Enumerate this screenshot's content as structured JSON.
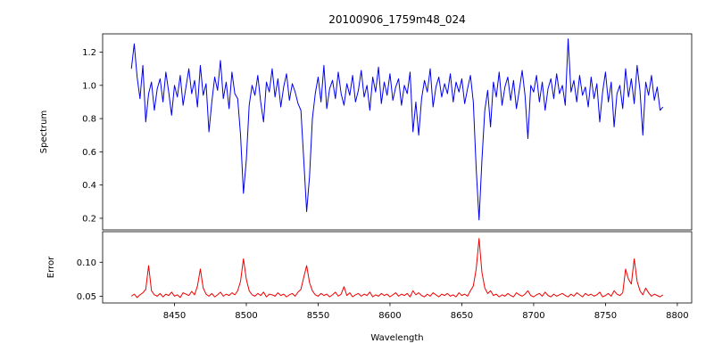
{
  "title": "20100906_1759m48_024",
  "chart_data": {
    "type": "line",
    "title": "20100906_1759m48_024",
    "xlabel": "Wavelength",
    "xlim": [
      8400,
      8810
    ],
    "xticks": [
      8450,
      8500,
      8550,
      8600,
      8650,
      8700,
      8750,
      8800
    ],
    "xtick_labels": [
      "8450",
      "8500",
      "8550",
      "8600",
      "8650",
      "8700",
      "8750",
      "8800"
    ],
    "x": [
      8420,
      8422,
      8424,
      8426,
      8428,
      8430,
      8432,
      8434,
      8436,
      8438,
      8440,
      8442,
      8444,
      8446,
      8448,
      8450,
      8452,
      8454,
      8456,
      8458,
      8460,
      8462,
      8464,
      8466,
      8468,
      8470,
      8472,
      8474,
      8476,
      8478,
      8480,
      8482,
      8484,
      8486,
      8488,
      8490,
      8492,
      8494,
      8496,
      8498,
      8500,
      8502,
      8504,
      8506,
      8508,
      8510,
      8512,
      8514,
      8516,
      8518,
      8520,
      8522,
      8524,
      8526,
      8528,
      8530,
      8532,
      8534,
      8536,
      8538,
      8540,
      8542,
      8544,
      8546,
      8548,
      8550,
      8552,
      8554,
      8556,
      8558,
      8560,
      8562,
      8564,
      8566,
      8568,
      8570,
      8572,
      8574,
      8576,
      8578,
      8580,
      8582,
      8584,
      8586,
      8588,
      8590,
      8592,
      8594,
      8596,
      8598,
      8600,
      8602,
      8604,
      8606,
      8608,
      8610,
      8612,
      8614,
      8616,
      8618,
      8620,
      8622,
      8624,
      8626,
      8628,
      8630,
      8632,
      8634,
      8636,
      8638,
      8640,
      8642,
      8644,
      8646,
      8648,
      8650,
      8652,
      8654,
      8656,
      8658,
      8660,
      8662,
      8664,
      8666,
      8668,
      8670,
      8672,
      8674,
      8676,
      8678,
      8680,
      8682,
      8684,
      8686,
      8688,
      8690,
      8692,
      8694,
      8696,
      8698,
      8700,
      8702,
      8704,
      8706,
      8708,
      8710,
      8712,
      8714,
      8716,
      8718,
      8720,
      8722,
      8724,
      8726,
      8728,
      8730,
      8732,
      8734,
      8736,
      8738,
      8740,
      8742,
      8744,
      8746,
      8748,
      8750,
      8752,
      8754,
      8756,
      8758,
      8760,
      8762,
      8764,
      8766,
      8768,
      8770,
      8772,
      8774,
      8776,
      8778,
      8780,
      8782,
      8784,
      8786,
      8788,
      8790
    ],
    "panels": [
      {
        "name": "spectrum",
        "ylabel": "Spectrum",
        "color": "#0000ee",
        "ylim": [
          0.13,
          1.31
        ],
        "ytick_values": [
          0.2,
          0.4,
          0.6,
          0.8,
          1.0,
          1.2
        ],
        "ytick_labels": [
          "0.2",
          "0.4",
          "0.6",
          "0.8",
          "1.0",
          "1.2"
        ],
        "values": [
          1.1,
          1.25,
          1.05,
          0.92,
          1.12,
          0.78,
          0.95,
          1.02,
          0.85,
          0.98,
          1.04,
          0.9,
          1.08,
          0.96,
          0.82,
          1.0,
          0.93,
          1.06,
          0.88,
          0.99,
          1.1,
          0.95,
          1.03,
          0.87,
          1.12,
          0.94,
          1.01,
          0.72,
          0.9,
          1.05,
          0.97,
          1.15,
          0.92,
          1.02,
          0.86,
          1.08,
          0.95,
          0.92,
          0.7,
          0.35,
          0.55,
          0.88,
          1.0,
          0.94,
          1.06,
          0.9,
          0.78,
          1.02,
          0.96,
          1.1,
          0.93,
          1.04,
          0.87,
          0.99,
          1.07,
          0.91,
          1.01,
          0.96,
          0.89,
          0.85,
          0.55,
          0.24,
          0.45,
          0.8,
          0.95,
          1.05,
          0.9,
          1.12,
          0.86,
          0.98,
          1.03,
          0.92,
          1.08,
          0.95,
          0.88,
          1.01,
          0.94,
          1.06,
          0.9,
          0.97,
          1.09,
          0.93,
          1.0,
          0.85,
          1.05,
          0.96,
          1.11,
          0.89,
          1.02,
          0.94,
          1.07,
          0.91,
          0.99,
          1.04,
          0.88,
          1.0,
          0.95,
          1.08,
          0.72,
          0.9,
          0.7,
          0.92,
          1.03,
          0.96,
          1.1,
          0.87,
          0.99,
          1.05,
          0.93,
          1.01,
          0.95,
          1.07,
          0.9,
          1.02,
          0.96,
          1.04,
          0.89,
          0.98,
          1.06,
          0.9,
          0.5,
          0.19,
          0.55,
          0.85,
          0.97,
          0.75,
          1.02,
          0.93,
          1.08,
          0.88,
          0.99,
          1.05,
          0.91,
          1.03,
          0.86,
          0.97,
          1.09,
          0.94,
          0.68,
          1.0,
          0.96,
          1.06,
          0.9,
          1.02,
          0.85,
          0.98,
          1.04,
          0.92,
          1.07,
          0.95,
          1.0,
          0.88,
          1.28,
          0.96,
          1.03,
          0.9,
          1.06,
          0.94,
          0.99,
          0.87,
          1.05,
          0.92,
          1.01,
          0.78,
          0.96,
          1.08,
          0.9,
          1.02,
          0.75,
          0.95,
          1.0,
          0.86,
          1.1,
          0.93,
          1.04,
          0.89,
          1.12,
          0.97,
          0.7,
          1.02,
          0.94,
          1.06,
          0.91,
          0.99,
          0.85,
          0.87
        ]
      },
      {
        "name": "error",
        "ylabel": "Error",
        "color": "#ee0000",
        "ylim": [
          0.04,
          0.145
        ],
        "ytick_values": [
          0.05,
          0.1
        ],
        "ytick_labels": [
          "0.05",
          "0.10"
        ],
        "values": [
          0.05,
          0.053,
          0.048,
          0.052,
          0.055,
          0.06,
          0.095,
          0.058,
          0.052,
          0.05,
          0.054,
          0.049,
          0.053,
          0.051,
          0.056,
          0.05,
          0.052,
          0.048,
          0.055,
          0.053,
          0.051,
          0.057,
          0.052,
          0.065,
          0.09,
          0.062,
          0.053,
          0.05,
          0.054,
          0.049,
          0.052,
          0.056,
          0.05,
          0.053,
          0.051,
          0.055,
          0.052,
          0.058,
          0.072,
          0.105,
          0.075,
          0.058,
          0.052,
          0.05,
          0.054,
          0.051,
          0.056,
          0.049,
          0.053,
          0.052,
          0.05,
          0.055,
          0.051,
          0.053,
          0.049,
          0.052,
          0.054,
          0.05,
          0.056,
          0.06,
          0.078,
          0.095,
          0.07,
          0.058,
          0.052,
          0.05,
          0.054,
          0.051,
          0.053,
          0.049,
          0.052,
          0.056,
          0.05,
          0.053,
          0.064,
          0.051,
          0.055,
          0.049,
          0.052,
          0.054,
          0.05,
          0.053,
          0.051,
          0.056,
          0.049,
          0.052,
          0.05,
          0.054,
          0.051,
          0.053,
          0.049,
          0.052,
          0.055,
          0.05,
          0.053,
          0.051,
          0.054,
          0.049,
          0.058,
          0.052,
          0.055,
          0.051,
          0.049,
          0.053,
          0.05,
          0.055,
          0.052,
          0.049,
          0.053,
          0.051,
          0.054,
          0.05,
          0.052,
          0.049,
          0.055,
          0.051,
          0.053,
          0.05,
          0.058,
          0.065,
          0.09,
          0.135,
          0.085,
          0.062,
          0.054,
          0.058,
          0.051,
          0.053,
          0.049,
          0.052,
          0.05,
          0.054,
          0.051,
          0.049,
          0.055,
          0.052,
          0.05,
          0.053,
          0.058,
          0.051,
          0.049,
          0.052,
          0.054,
          0.05,
          0.056,
          0.051,
          0.049,
          0.053,
          0.05,
          0.052,
          0.054,
          0.051,
          0.049,
          0.053,
          0.05,
          0.055,
          0.052,
          0.049,
          0.054,
          0.051,
          0.053,
          0.05,
          0.052,
          0.056,
          0.049,
          0.051,
          0.054,
          0.05,
          0.058,
          0.053,
          0.051,
          0.055,
          0.09,
          0.075,
          0.068,
          0.105,
          0.072,
          0.058,
          0.052,
          0.062,
          0.055,
          0.05,
          0.053,
          0.051,
          0.049,
          0.052
        ]
      }
    ],
    "legend": null,
    "grid": false
  }
}
